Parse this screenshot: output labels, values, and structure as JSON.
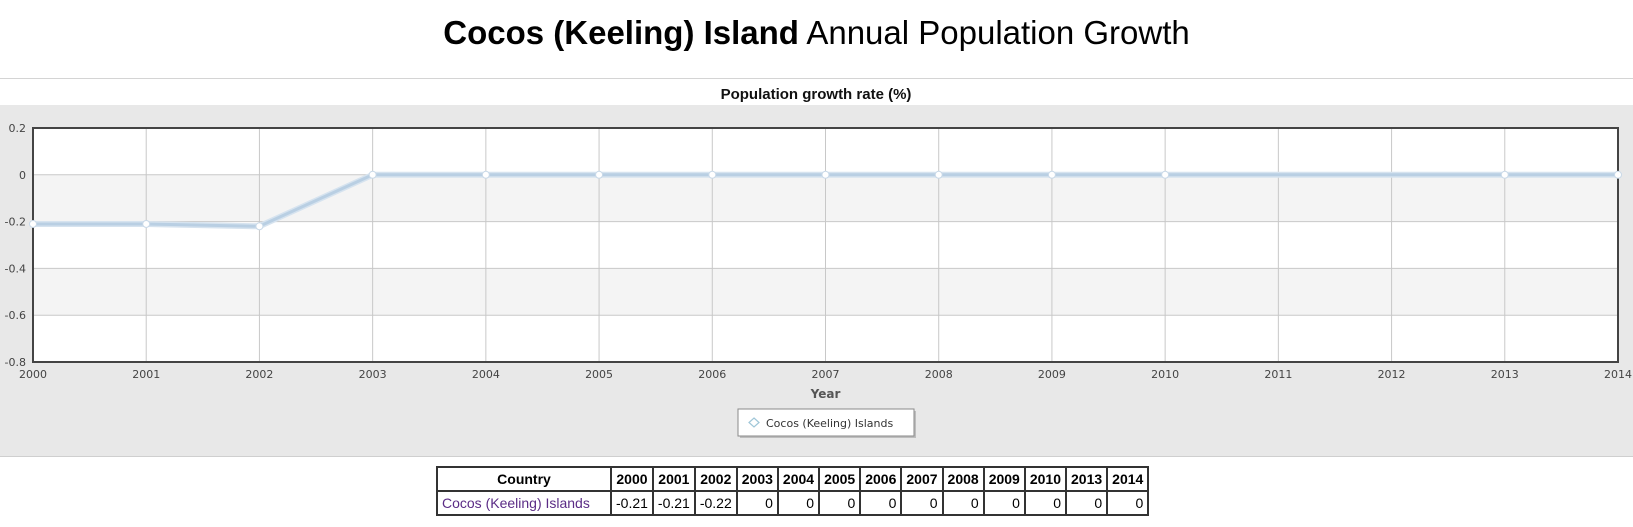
{
  "page": {
    "title_bold": "Cocos (Keeling) Island",
    "title_rest": "Annual Population Growth"
  },
  "colors": {
    "series_line": "#b9cfe3",
    "panel_bg": "#e8e8e8",
    "plot_band": "#f4f4f4",
    "country_link": "#5b2c86"
  },
  "chart_data": {
    "type": "line",
    "title": "Population growth rate (%)",
    "xlabel": "Year",
    "ylabel": "",
    "x": [
      2000,
      2001,
      2002,
      2003,
      2004,
      2005,
      2006,
      2007,
      2008,
      2009,
      2010,
      2011,
      2012,
      2013,
      2014
    ],
    "x_tick_labels": [
      "2000",
      "2001",
      "2002",
      "2003",
      "2004",
      "2005",
      "2006",
      "2007",
      "2008",
      "2009",
      "2010",
      "2011",
      "2012",
      "2013",
      "2014"
    ],
    "y_tick_labels": [
      "0.2",
      "0",
      "-0.2",
      "-0.4",
      "-0.6",
      "-0.8"
    ],
    "y_ticks": [
      0.2,
      0,
      -0.2,
      -0.4,
      -0.6,
      -0.8
    ],
    "ylim": [
      -0.8,
      0.2
    ],
    "xlim": [
      2000,
      2014
    ],
    "grid": true,
    "legend_position": "bottom-center",
    "series": [
      {
        "name": "Cocos (Keeling) Islands",
        "points": [
          {
            "x": 2000,
            "y": -0.21
          },
          {
            "x": 2001,
            "y": -0.21
          },
          {
            "x": 2002,
            "y": -0.22
          },
          {
            "x": 2003,
            "y": 0
          },
          {
            "x": 2004,
            "y": 0
          },
          {
            "x": 2005,
            "y": 0
          },
          {
            "x": 2006,
            "y": 0
          },
          {
            "x": 2007,
            "y": 0
          },
          {
            "x": 2008,
            "y": 0
          },
          {
            "x": 2009,
            "y": 0
          },
          {
            "x": 2010,
            "y": 0
          },
          {
            "x": 2013,
            "y": 0
          },
          {
            "x": 2014,
            "y": 0
          }
        ]
      }
    ]
  },
  "table": {
    "headers": [
      "Country",
      "2000",
      "2001",
      "2002",
      "2003",
      "2004",
      "2005",
      "2006",
      "2007",
      "2008",
      "2009",
      "2010",
      "2013",
      "2014"
    ],
    "rows": [
      [
        "Cocos (Keeling) Islands",
        "-0.21",
        "-0.21",
        "-0.22",
        "0",
        "0",
        "0",
        "0",
        "0",
        "0",
        "0",
        "0",
        "0",
        "0"
      ]
    ]
  }
}
